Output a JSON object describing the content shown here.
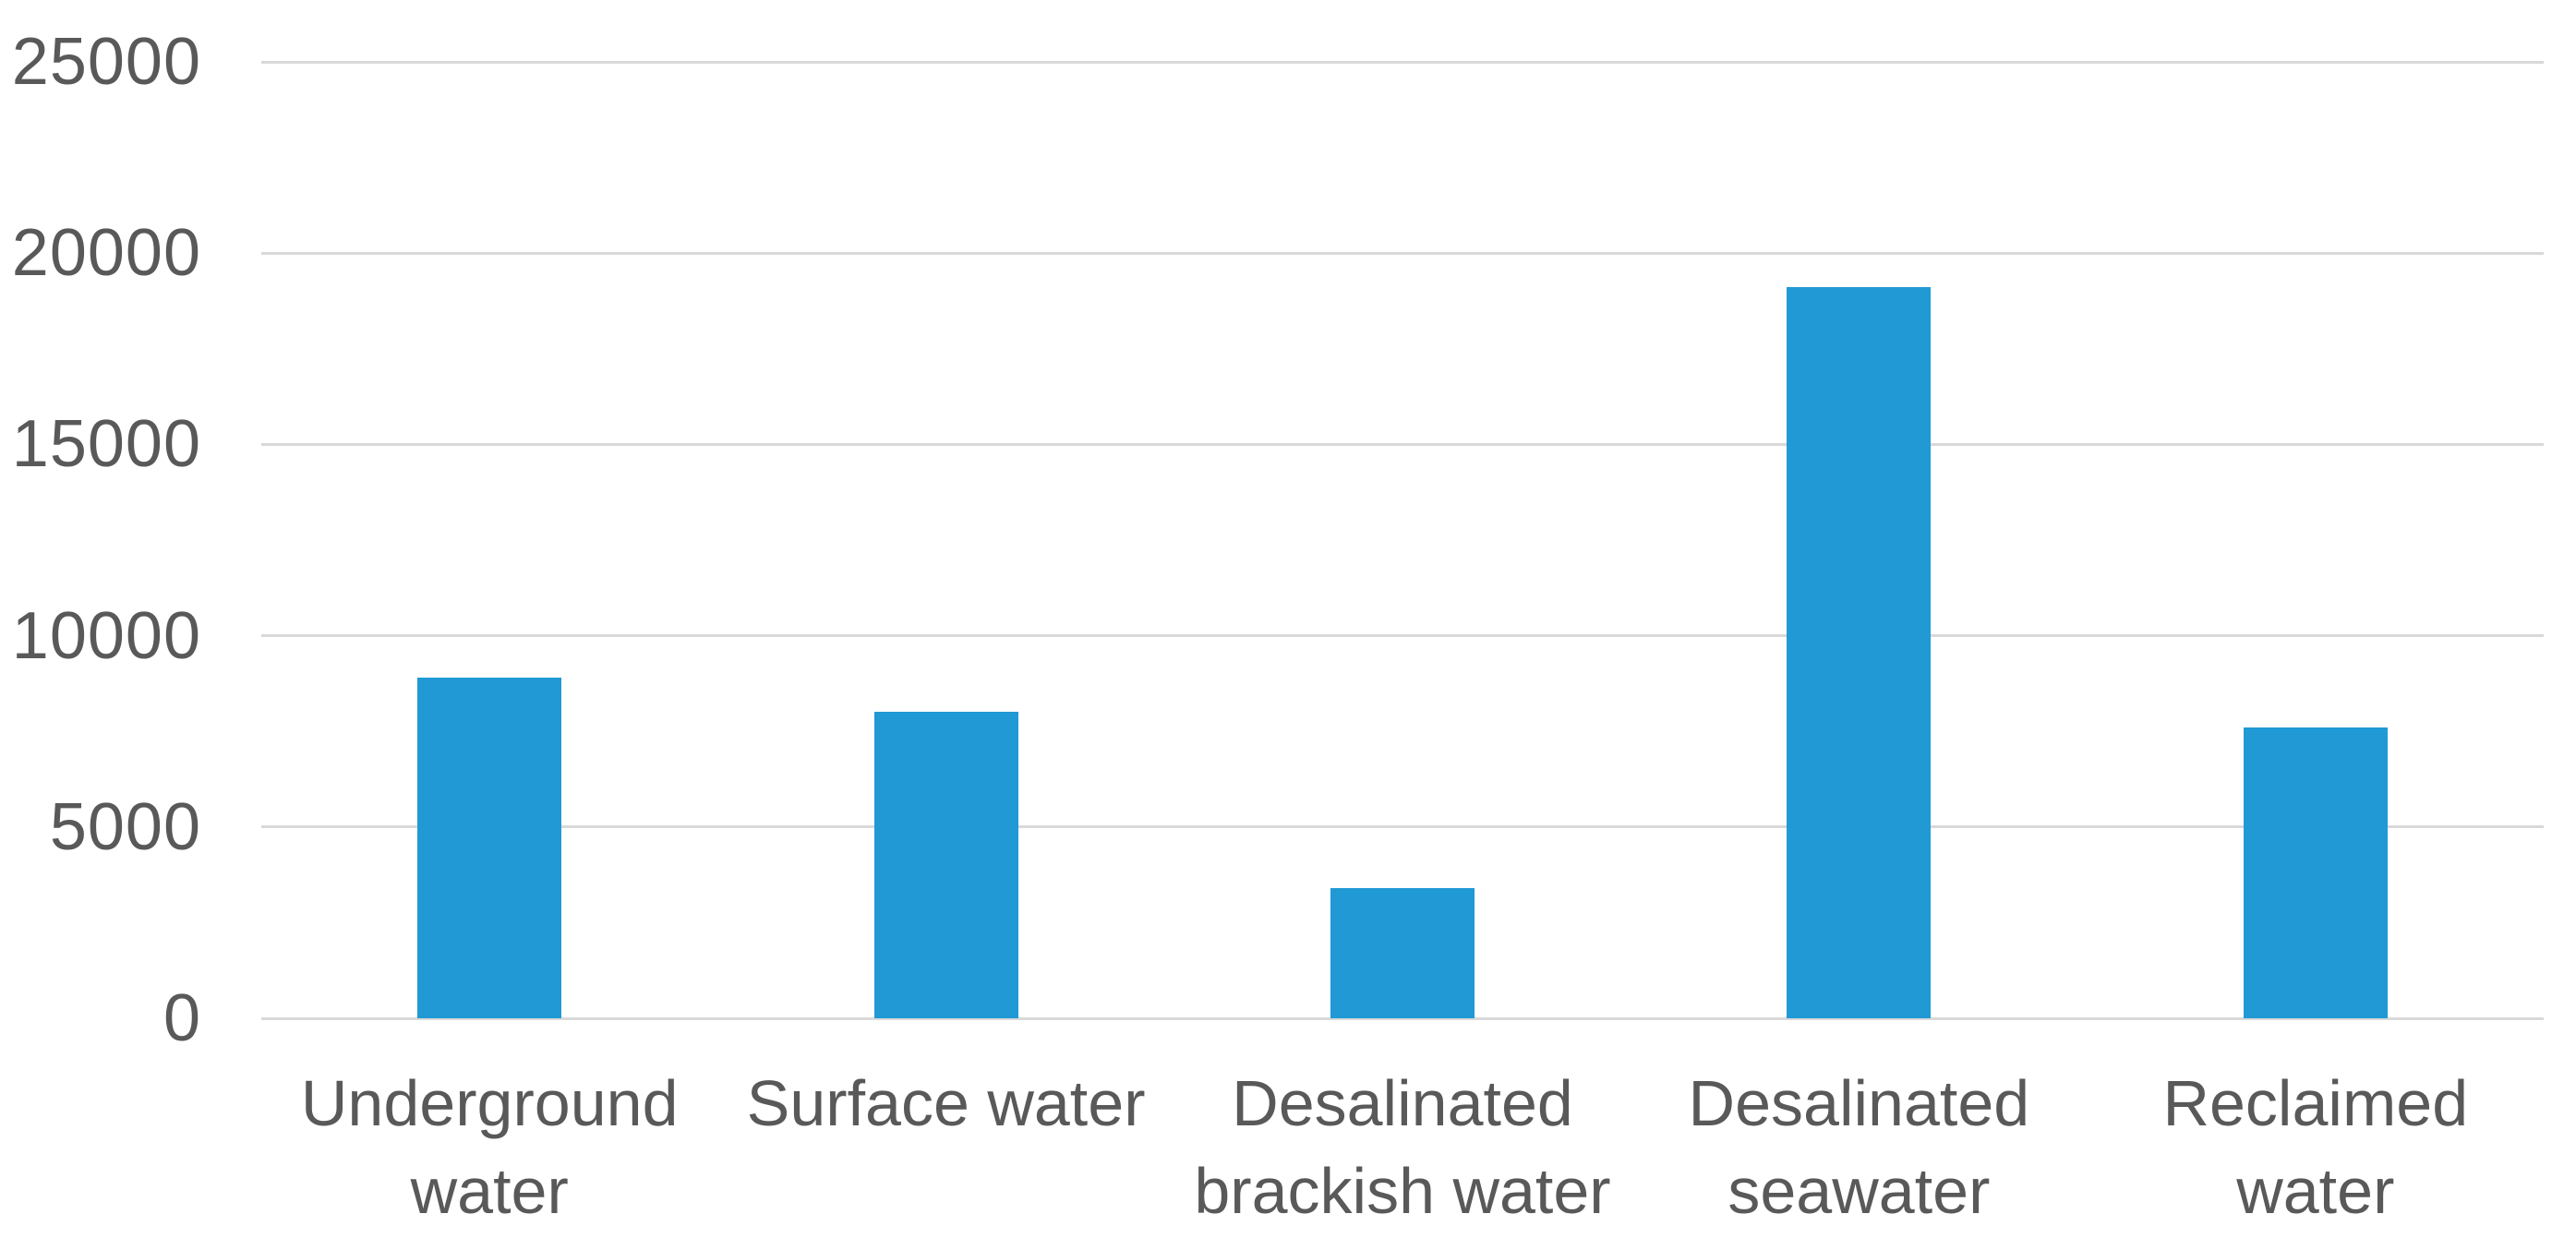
{
  "chart_data": {
    "type": "bar",
    "title": "",
    "xlabel": "",
    "ylabel": "",
    "categories": [
      "Underground water",
      "Surface water",
      "Desalinated brackish water",
      "Desalinated seawater",
      "Reclaimed water"
    ],
    "category_label_lines": [
      [
        "Underground",
        "water"
      ],
      [
        "Surface water"
      ],
      [
        "Desalinated",
        "brackish water"
      ],
      [
        "Desalinated",
        "seawater"
      ],
      [
        "Reclaimed",
        "water"
      ]
    ],
    "values": [
      8900,
      8000,
      3400,
      19100,
      7600
    ],
    "ylim": [
      0,
      25000
    ],
    "yticks": [
      0,
      5000,
      10000,
      15000,
      20000,
      25000
    ],
    "ytick_labels": [
      "0",
      "5000",
      "10000",
      "15000",
      "20000",
      "25000"
    ],
    "grid": true,
    "legend": false,
    "colors": {
      "bar": "#2099D5",
      "gridline": "#D9D9D9",
      "text": "#595959"
    }
  }
}
